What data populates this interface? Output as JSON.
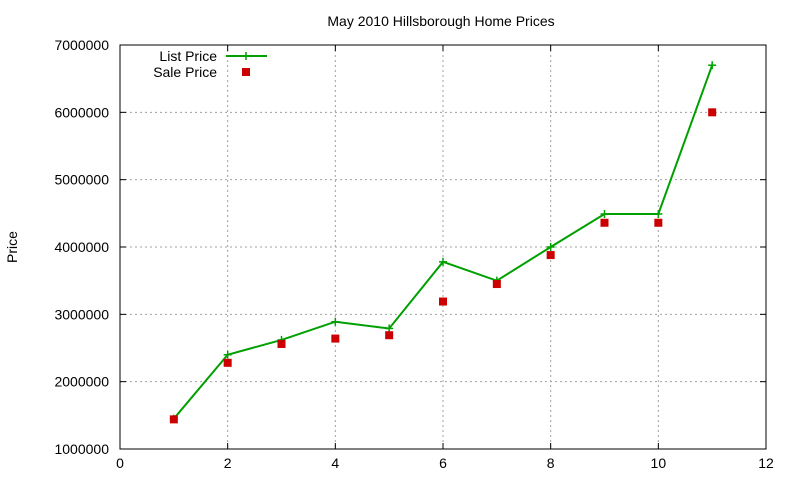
{
  "chart_data": {
    "type": "line",
    "title": "May 2010 Hillsborough Home Prices",
    "xlabel": "",
    "ylabel": "Price",
    "xlim": [
      0,
      12
    ],
    "ylim": [
      1000000,
      7000000
    ],
    "x_ticks": [
      0,
      2,
      4,
      6,
      8,
      10,
      12
    ],
    "y_ticks": [
      1000000,
      2000000,
      3000000,
      4000000,
      5000000,
      6000000,
      7000000
    ],
    "grid": true,
    "legend_position": "top-left",
    "series": [
      {
        "name": "List Price",
        "style": "line-with-plus-markers",
        "color": "#00a000",
        "x": [
          1,
          2,
          3,
          4,
          5,
          6,
          7,
          8,
          9,
          10,
          11
        ],
        "values": [
          1450000,
          2400000,
          2620000,
          2890000,
          2790000,
          3780000,
          3500000,
          4000000,
          4490000,
          4490000,
          6700000
        ]
      },
      {
        "name": "Sale Price",
        "style": "square-markers",
        "color": "#cc0000",
        "x": [
          1,
          2,
          3,
          4,
          5,
          6,
          7,
          8,
          9,
          10,
          11
        ],
        "values": [
          1440000,
          2280000,
          2560000,
          2640000,
          2690000,
          3190000,
          3450000,
          3880000,
          4360000,
          4360000,
          6000000
        ]
      }
    ]
  }
}
